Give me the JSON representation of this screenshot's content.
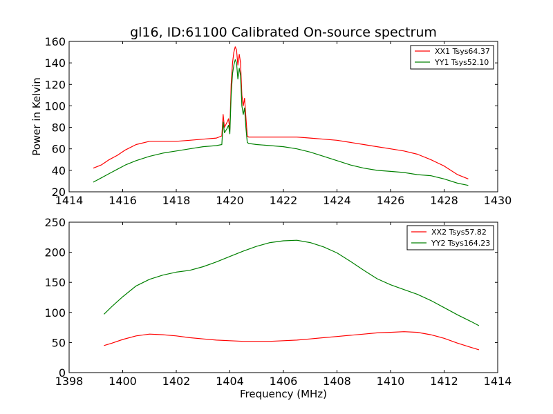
{
  "chart_data": [
    {
      "type": "line",
      "title": "gl16, ID:61100 Calibrated On-source spectrum",
      "xlabel": "",
      "ylabel": "Power in Kelvin",
      "xlim": [
        1414,
        1430
      ],
      "ylim": [
        20,
        160
      ],
      "xticks": [
        1414,
        1416,
        1418,
        1420,
        1422,
        1424,
        1426,
        1428,
        1430
      ],
      "yticks": [
        20,
        40,
        60,
        80,
        100,
        120,
        140,
        160
      ],
      "legend_position": "top-right",
      "grid": false,
      "series": [
        {
          "name": "XX1 Tsys64.37",
          "color": "#ff0000",
          "x": [
            1414.9,
            1415.2,
            1415.5,
            1415.8,
            1416.1,
            1416.5,
            1417.0,
            1417.5,
            1418.0,
            1418.5,
            1419.0,
            1419.5,
            1419.7,
            1419.75,
            1419.8,
            1419.9,
            1419.95,
            1420.0,
            1420.05,
            1420.1,
            1420.15,
            1420.2,
            1420.25,
            1420.3,
            1420.35,
            1420.4,
            1420.45,
            1420.5,
            1420.55,
            1420.6,
            1420.65,
            1420.7,
            1421.0,
            1421.5,
            1422.0,
            1422.5,
            1423.0,
            1423.5,
            1424.0,
            1424.5,
            1425.0,
            1425.5,
            1426.0,
            1426.5,
            1427.0,
            1427.5,
            1428.0,
            1428.5,
            1428.9
          ],
          "y": [
            42,
            45,
            50,
            54,
            59,
            64,
            67,
            67,
            67,
            68,
            69,
            70,
            72,
            92,
            80,
            85,
            88,
            78,
            120,
            140,
            150,
            155,
            152,
            138,
            148,
            140,
            110,
            100,
            107,
            90,
            72,
            71,
            71,
            71,
            71,
            71,
            70,
            69,
            68,
            66,
            64,
            62,
            60,
            58,
            55,
            50,
            44,
            36,
            32
          ]
        },
        {
          "name": "YY1 Tsys52.10",
          "color": "#008000",
          "x": [
            1414.9,
            1415.2,
            1415.5,
            1415.8,
            1416.1,
            1416.5,
            1417.0,
            1417.5,
            1418.0,
            1418.5,
            1419.0,
            1419.5,
            1419.7,
            1419.75,
            1419.8,
            1419.9,
            1419.95,
            1420.0,
            1420.05,
            1420.1,
            1420.15,
            1420.2,
            1420.25,
            1420.3,
            1420.35,
            1420.4,
            1420.45,
            1420.5,
            1420.55,
            1420.6,
            1420.65,
            1420.7,
            1421.0,
            1421.5,
            1422.0,
            1422.5,
            1423.0,
            1423.5,
            1424.0,
            1424.5,
            1425.0,
            1425.5,
            1426.0,
            1426.5,
            1427.0,
            1427.5,
            1428.0,
            1428.5,
            1428.9
          ],
          "y": [
            29,
            33,
            37,
            41,
            45,
            49,
            53,
            56,
            58,
            60,
            62,
            63,
            64,
            85,
            75,
            79,
            82,
            74,
            110,
            130,
            138,
            143,
            140,
            125,
            135,
            128,
            100,
            92,
            98,
            80,
            66,
            65,
            64,
            63,
            62,
            60,
            57,
            53,
            49,
            45,
            42,
            40,
            39,
            38,
            36,
            35,
            32,
            28,
            26
          ]
        }
      ]
    },
    {
      "type": "line",
      "title": "",
      "xlabel": "Frequency (MHz)",
      "ylabel": "",
      "xlim": [
        1398,
        1414
      ],
      "ylim": [
        0,
        250
      ],
      "xticks": [
        1398,
        1400,
        1402,
        1404,
        1406,
        1408,
        1410,
        1412,
        1414
      ],
      "yticks": [
        0,
        50,
        100,
        150,
        200,
        250
      ],
      "legend_position": "top-right",
      "grid": false,
      "series": [
        {
          "name": "XX2 Tsys57.82",
          "color": "#ff0000",
          "x": [
            1399.3,
            1399.6,
            1400.0,
            1400.5,
            1401.0,
            1401.5,
            1402.0,
            1402.5,
            1403.0,
            1403.5,
            1404.0,
            1404.5,
            1405.0,
            1405.5,
            1406.0,
            1406.5,
            1407.0,
            1407.5,
            1408.0,
            1408.5,
            1409.0,
            1409.5,
            1410.0,
            1410.5,
            1411.0,
            1411.5,
            1412.0,
            1412.5,
            1413.0,
            1413.3
          ],
          "y": [
            45,
            49,
            55,
            61,
            64,
            63,
            61,
            58,
            56,
            54,
            53,
            52,
            52,
            52,
            53,
            54,
            56,
            58,
            60,
            62,
            64,
            66,
            67,
            68,
            67,
            63,
            57,
            49,
            42,
            38
          ]
        },
        {
          "name": "YY2 Tsys164.23",
          "color": "#008000",
          "x": [
            1399.3,
            1399.6,
            1400.0,
            1400.5,
            1401.0,
            1401.5,
            1402.0,
            1402.5,
            1403.0,
            1403.5,
            1404.0,
            1404.5,
            1405.0,
            1405.5,
            1406.0,
            1406.5,
            1407.0,
            1407.5,
            1408.0,
            1408.5,
            1409.0,
            1409.5,
            1410.0,
            1410.5,
            1411.0,
            1411.5,
            1412.0,
            1412.5,
            1413.0,
            1413.3
          ],
          "y": [
            97,
            110,
            126,
            144,
            155,
            162,
            167,
            170,
            176,
            184,
            193,
            202,
            210,
            216,
            219,
            220,
            216,
            209,
            199,
            185,
            170,
            156,
            146,
            138,
            130,
            120,
            108,
            96,
            85,
            78
          ]
        }
      ]
    }
  ]
}
